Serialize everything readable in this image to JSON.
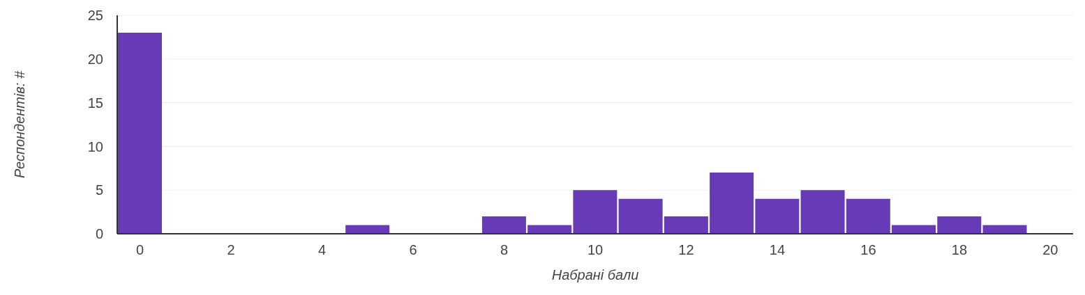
{
  "chart_data": {
    "type": "histogram",
    "xlabel": "Набрані бали",
    "ylabel": "Респондентів: #",
    "bins": [
      -0.5,
      0.5,
      1.5,
      2.5,
      3.5,
      4.5,
      5.5,
      6.5,
      7.5,
      8.5,
      9.5,
      10.5,
      11.5,
      12.5,
      13.5,
      14.5,
      15.5,
      16.5,
      17.5,
      18.5,
      19.5,
      20.5
    ],
    "values": [
      23,
      0,
      0,
      0,
      0,
      1,
      0,
      0,
      2,
      1,
      5,
      4,
      2,
      7,
      4,
      5,
      4,
      1,
      2,
      1,
      0
    ],
    "color": "#673ab7",
    "xlim": [
      -0.5,
      20.5
    ],
    "xticks": [
      0,
      2,
      4,
      6,
      8,
      10,
      12,
      14,
      16,
      18,
      20
    ],
    "ylim": [
      0,
      25
    ],
    "yticks": [
      0,
      5,
      10,
      15,
      20,
      25
    ],
    "grid": "y"
  }
}
